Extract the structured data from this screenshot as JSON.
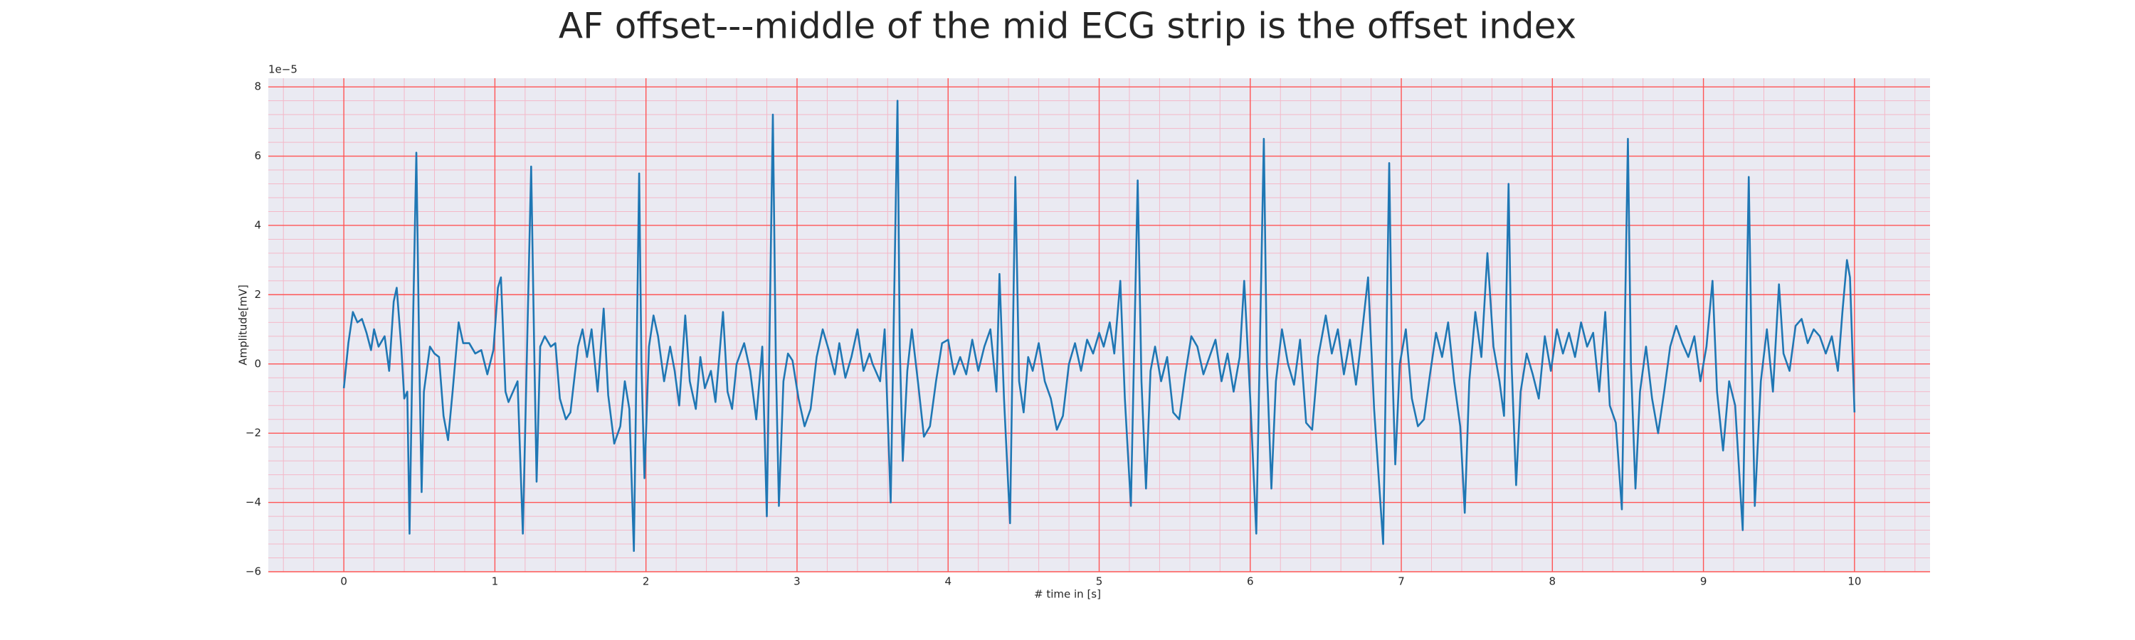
{
  "chart_data": {
    "type": "line",
    "title": "AF offset---middle of the mid ECG strip is the offset index",
    "xlabel": "# time in [s]",
    "ylabel": "Amplitude[mV]",
    "y_offset_label": "1e−5",
    "xlim": [
      -0.5,
      10.5
    ],
    "ylim": [
      -6,
      8.25
    ],
    "xticks": [
      0,
      1,
      2,
      3,
      4,
      5,
      6,
      7,
      8,
      9,
      10
    ],
    "yticks": [
      {
        "value": -6,
        "label": "−6"
      },
      {
        "value": -4,
        "label": "−4"
      },
      {
        "value": -2,
        "label": "−2"
      },
      0,
      2,
      4,
      6,
      8
    ],
    "grid": true,
    "grid_color": "#ff5555",
    "minor_grid": 5,
    "minor_grid_color": "#f4b8c8",
    "background": "#eaeaf2",
    "series": [
      {
        "color": "#1f77b4",
        "x": [
          0.0,
          0.03,
          0.06,
          0.09,
          0.12,
          0.15,
          0.18,
          0.2,
          0.23,
          0.27,
          0.3,
          0.33,
          0.35,
          0.38,
          0.4,
          0.42,
          0.435,
          0.455,
          0.48,
          0.5,
          0.515,
          0.53,
          0.57,
          0.6,
          0.63,
          0.66,
          0.69,
          0.72,
          0.76,
          0.79,
          0.83,
          0.87,
          0.91,
          0.95,
          0.99,
          1.02,
          1.04,
          1.07,
          1.09,
          1.11,
          1.15,
          1.185,
          1.24,
          1.26,
          1.276,
          1.3,
          1.33,
          1.37,
          1.4,
          1.43,
          1.47,
          1.5,
          1.55,
          1.58,
          1.61,
          1.64,
          1.68,
          1.72,
          1.75,
          1.79,
          1.83,
          1.86,
          1.89,
          1.92,
          1.955,
          1.97,
          1.99,
          2.02,
          2.05,
          2.08,
          2.12,
          2.16,
          2.19,
          2.22,
          2.26,
          2.29,
          2.33,
          2.36,
          2.39,
          2.43,
          2.46,
          2.51,
          2.54,
          2.57,
          2.6,
          2.65,
          2.69,
          2.73,
          2.77,
          2.8,
          2.84,
          2.86,
          2.88,
          2.91,
          2.94,
          2.97,
          3.01,
          3.05,
          3.09,
          3.13,
          3.17,
          3.21,
          3.25,
          3.28,
          3.32,
          3.36,
          3.4,
          3.44,
          3.48,
          3.5,
          3.55,
          3.58,
          3.62,
          3.665,
          3.68,
          3.7,
          3.73,
          3.76,
          3.8,
          3.84,
          3.88,
          3.92,
          3.96,
          4.0,
          4.04,
          4.08,
          4.12,
          4.16,
          4.2,
          4.24,
          4.28,
          4.32,
          4.34,
          4.37,
          4.41,
          4.445,
          4.47,
          4.5,
          4.53,
          4.56,
          4.6,
          4.64,
          4.68,
          4.72,
          4.76,
          4.8,
          4.84,
          4.88,
          4.92,
          4.96,
          5.0,
          5.03,
          5.07,
          5.1,
          5.14,
          5.17,
          5.21,
          5.255,
          5.28,
          5.31,
          5.34,
          5.37,
          5.41,
          5.45,
          5.49,
          5.53,
          5.57,
          5.61,
          5.65,
          5.69,
          5.73,
          5.77,
          5.81,
          5.85,
          5.89,
          5.93,
          5.96,
          6.0,
          6.04,
          6.09,
          6.11,
          6.14,
          6.17,
          6.21,
          6.25,
          6.29,
          6.33,
          6.37,
          6.41,
          6.45,
          6.5,
          6.54,
          6.58,
          6.62,
          6.66,
          6.7,
          6.73,
          6.78,
          6.82,
          6.88,
          6.92,
          6.94,
          6.96,
          6.99,
          7.03,
          7.07,
          7.11,
          7.15,
          7.19,
          7.23,
          7.27,
          7.31,
          7.35,
          7.39,
          7.42,
          7.45,
          7.49,
          7.53,
          7.57,
          7.61,
          7.65,
          7.68,
          7.71,
          7.73,
          7.76,
          7.79,
          7.83,
          7.87,
          7.91,
          7.95,
          7.99,
          8.03,
          8.07,
          8.11,
          8.15,
          8.19,
          8.23,
          8.27,
          8.31,
          8.35,
          8.38,
          8.42,
          8.46,
          8.5,
          8.52,
          8.55,
          8.58,
          8.62,
          8.66,
          8.7,
          8.74,
          8.78,
          8.82,
          8.86,
          8.9,
          8.94,
          8.98,
          9.02,
          9.06,
          9.09,
          9.13,
          9.17,
          9.21,
          9.26,
          9.3,
          9.32,
          9.34,
          9.38,
          9.42,
          9.46,
          9.5,
          9.53,
          9.57,
          9.61,
          9.65,
          9.69,
          9.73,
          9.77,
          9.81,
          9.85,
          9.89,
          9.92,
          9.95,
          9.97,
          10.0
        ],
        "values": [
          -0.7,
          0.6,
          1.5,
          1.2,
          1.3,
          0.9,
          0.4,
          1.0,
          0.5,
          0.8,
          -0.2,
          1.8,
          2.2,
          0.5,
          -1.0,
          -0.8,
          -4.9,
          0.5,
          6.1,
          0.0,
          -3.7,
          -0.8,
          0.5,
          0.3,
          0.2,
          -1.5,
          -2.2,
          -0.8,
          1.2,
          0.6,
          0.6,
          0.3,
          0.4,
          -0.3,
          0.4,
          2.2,
          2.5,
          -0.8,
          -1.1,
          -0.9,
          -0.5,
          -4.9,
          5.7,
          0.5,
          -3.4,
          0.5,
          0.8,
          0.5,
          0.6,
          -1.0,
          -1.6,
          -1.4,
          0.5,
          1.0,
          0.2,
          1.0,
          -0.8,
          1.6,
          -0.9,
          -2.3,
          -1.8,
          -0.5,
          -1.3,
          -5.4,
          5.5,
          0.0,
          -3.3,
          0.5,
          1.4,
          0.8,
          -0.5,
          0.5,
          -0.2,
          -1.2,
          1.4,
          -0.5,
          -1.3,
          0.2,
          -0.7,
          -0.2,
          -1.1,
          1.5,
          -0.8,
          -1.3,
          0.0,
          0.6,
          -0.2,
          -1.6,
          0.5,
          -4.4,
          7.2,
          0.0,
          -4.1,
          -0.5,
          0.3,
          0.1,
          -1.0,
          -1.8,
          -1.3,
          0.2,
          1.0,
          0.4,
          -0.3,
          0.6,
          -0.4,
          0.2,
          1.0,
          -0.2,
          0.3,
          0.0,
          -0.5,
          1.0,
          -4.0,
          7.6,
          0.5,
          -2.8,
          -0.2,
          1.0,
          -0.5,
          -2.1,
          -1.8,
          -0.5,
          0.6,
          0.7,
          -0.3,
          0.2,
          -0.3,
          0.7,
          -0.2,
          0.5,
          1.0,
          -0.8,
          2.6,
          -1.0,
          -4.6,
          5.4,
          -0.5,
          -1.4,
          0.2,
          -0.2,
          0.6,
          -0.5,
          -1.0,
          -1.9,
          -1.5,
          0.0,
          0.6,
          -0.2,
          0.7,
          0.3,
          0.9,
          0.5,
          1.2,
          0.3,
          2.4,
          -1.0,
          -4.1,
          5.3,
          -0.5,
          -3.6,
          -0.2,
          0.5,
          -0.5,
          0.2,
          -1.4,
          -1.6,
          -0.3,
          0.8,
          0.5,
          -0.3,
          0.2,
          0.7,
          -0.5,
          0.3,
          -0.8,
          0.2,
          2.4,
          -1.0,
          -4.9,
          6.5,
          0.0,
          -3.6,
          -0.5,
          1.0,
          0.0,
          -0.6,
          0.7,
          -1.7,
          -1.9,
          0.2,
          1.4,
          0.3,
          1.0,
          -0.3,
          0.7,
          -0.6,
          0.5,
          2.5,
          -1.3,
          -5.2,
          5.8,
          0.0,
          -2.9,
          0.0,
          1.0,
          -1.0,
          -1.8,
          -1.6,
          -0.3,
          0.9,
          0.2,
          1.2,
          -0.5,
          -1.8,
          -4.3,
          -0.5,
          1.5,
          0.2,
          3.2,
          0.5,
          -0.5,
          -1.5,
          5.2,
          0.0,
          -3.5,
          -0.8,
          0.3,
          -0.3,
          -1.0,
          0.8,
          -0.2,
          1.0,
          0.3,
          0.9,
          0.2,
          1.2,
          0.5,
          0.9,
          -0.8,
          1.5,
          -1.2,
          -1.7,
          -4.2,
          6.5,
          0.0,
          -3.6,
          -0.8,
          0.5,
          -1.0,
          -2.0,
          -0.8,
          0.5,
          1.1,
          0.6,
          0.2,
          0.8,
          -0.5,
          0.5,
          2.4,
          -0.8,
          -2.5,
          -0.5,
          -1.2,
          -4.8,
          5.4,
          0.0,
          -4.1,
          -0.5,
          1.0,
          -0.8,
          2.3,
          0.3,
          -0.2,
          1.1,
          1.3,
          0.6,
          1.0,
          0.8,
          0.3,
          0.8,
          -0.2,
          1.5,
          3.0,
          2.5,
          -1.4
        ]
      }
    ]
  }
}
